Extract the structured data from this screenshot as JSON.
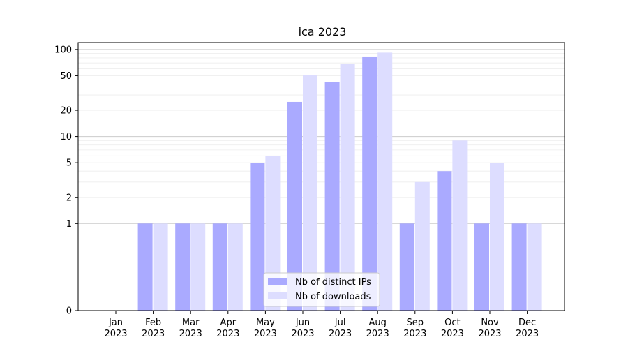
{
  "chart_data": {
    "type": "bar",
    "title": "ica 2023",
    "xlabel": "",
    "ylabel": "",
    "yscale": "symlog",
    "ylim": [
      0,
      120
    ],
    "yticks": [
      0,
      1,
      2,
      5,
      10,
      20,
      50,
      100
    ],
    "grid": "y-major-and-minor",
    "legend_position": "bottom-center",
    "categories": [
      [
        "Jan",
        "2023"
      ],
      [
        "Feb",
        "2023"
      ],
      [
        "Mar",
        "2023"
      ],
      [
        "Apr",
        "2023"
      ],
      [
        "May",
        "2023"
      ],
      [
        "Jun",
        "2023"
      ],
      [
        "Jul",
        "2023"
      ],
      [
        "Aug",
        "2023"
      ],
      [
        "Sep",
        "2023"
      ],
      [
        "Oct",
        "2023"
      ],
      [
        "Nov",
        "2023"
      ],
      [
        "Dec",
        "2023"
      ]
    ],
    "series": [
      {
        "name": "Nb of distinct IPs",
        "color": "#aaaaff",
        "values": [
          0,
          1,
          1,
          1,
          5,
          25,
          42,
          83,
          1,
          4,
          1,
          1
        ]
      },
      {
        "name": "Nb of downloads",
        "color": "#ddddff",
        "values": [
          0,
          1,
          1,
          1,
          6,
          51,
          68,
          92,
          3,
          9,
          5,
          1
        ]
      }
    ]
  }
}
